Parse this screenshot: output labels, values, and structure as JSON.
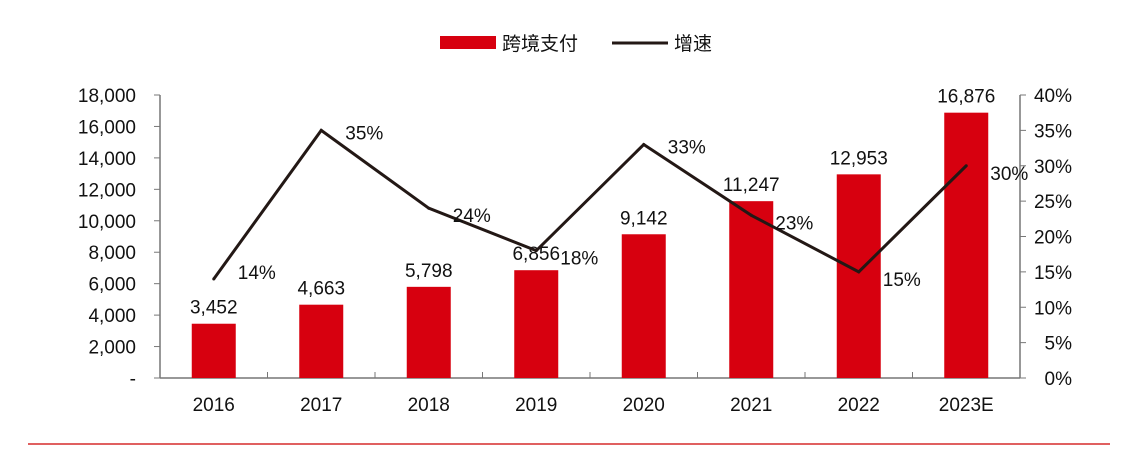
{
  "chart_data": {
    "type": "bar+line",
    "categories": [
      "2016",
      "2017",
      "2018",
      "2019",
      "2020",
      "2021",
      "2022",
      "2023E"
    ],
    "series": [
      {
        "name": "跨境支付",
        "type": "bar",
        "axis": "left",
        "color": "#d7000f",
        "values": [
          3452,
          4663,
          5798,
          6856,
          9142,
          11247,
          12953,
          16876
        ],
        "labels": [
          "3,452",
          "4,663",
          "5,798",
          "6,856",
          "9,142",
          "11,247",
          "12,953",
          "16,876"
        ]
      },
      {
        "name": "增速",
        "type": "line",
        "axis": "right",
        "color": "#231815",
        "values": [
          14,
          35,
          24,
          18,
          33,
          23,
          15,
          30
        ],
        "labels": [
          "14%",
          "35%",
          "24%",
          "18%",
          "33%",
          "23%",
          "15%",
          "30%"
        ]
      }
    ],
    "ylim": [
      0,
      18000
    ],
    "y2lim": [
      0,
      40
    ],
    "yticks": [
      "-",
      "2,000",
      "4,000",
      "6,000",
      "8,000",
      "10,000",
      "12,000",
      "14,000",
      "16,000",
      "18,000"
    ],
    "y2ticks": [
      "0%",
      "5%",
      "10%",
      "15%",
      "20%",
      "25%",
      "30%",
      "35%",
      "40%"
    ],
    "legend": "top-center",
    "grid": false
  }
}
